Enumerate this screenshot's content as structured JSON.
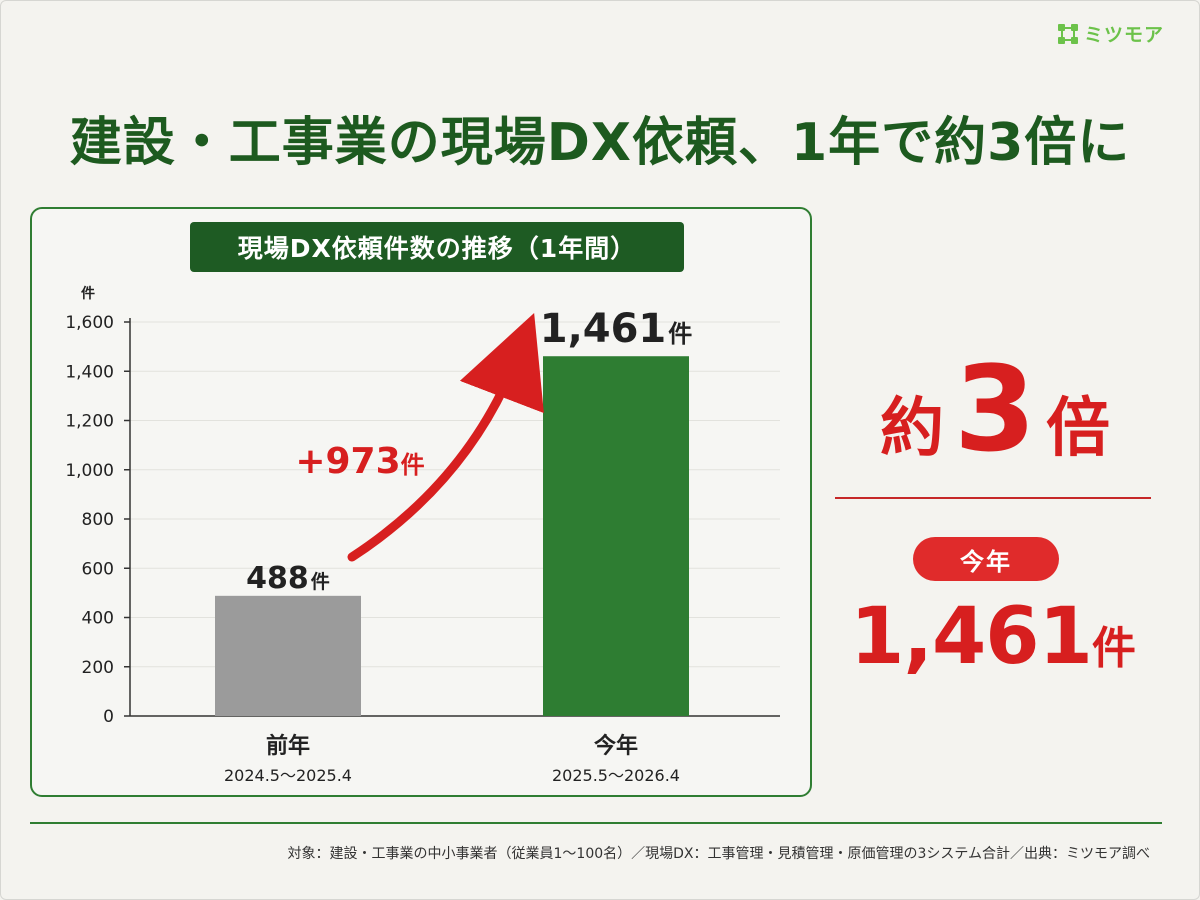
{
  "brand": {
    "name": "ミツモア"
  },
  "headline": "建設・工事業の現場DX依頼、1年で約3倍に",
  "chart_data": {
    "type": "bar",
    "title": "現場DX依頼件数の推移（1年間）",
    "ylabel": "件",
    "ylim": [
      0,
      1600
    ],
    "yticks": [
      0,
      200,
      400,
      600,
      800,
      1000,
      1200,
      1400,
      1600
    ],
    "ytick_labels": [
      "0",
      "200",
      "400",
      "600",
      "800",
      "1,000",
      "1,200",
      "1,400",
      "1,600"
    ],
    "categories": [
      "前年",
      "今年"
    ],
    "category_periods": [
      "2024.5～2025.4",
      "2025.5～2026.4"
    ],
    "values": [
      488,
      1461
    ],
    "value_labels": [
      "488",
      "1,461"
    ],
    "unit": "件",
    "bar_colors": [
      "#9b9b9b",
      "#2e7d32"
    ],
    "annotation": {
      "text": "+973",
      "unit": "件",
      "color": "#d71f1f"
    },
    "grid": true
  },
  "summary": {
    "ratio_prefix": "約",
    "ratio_value": "3",
    "ratio_suffix": "倍",
    "pill_label": "今年",
    "count_value": "1,461",
    "count_unit": "件"
  },
  "footnote": "対象：建設・工事業の中小事業者（従業員1～100名）／現場DX：工事管理・見積管理・原価管理の3システム合計／出典：ミツモア調べ"
}
